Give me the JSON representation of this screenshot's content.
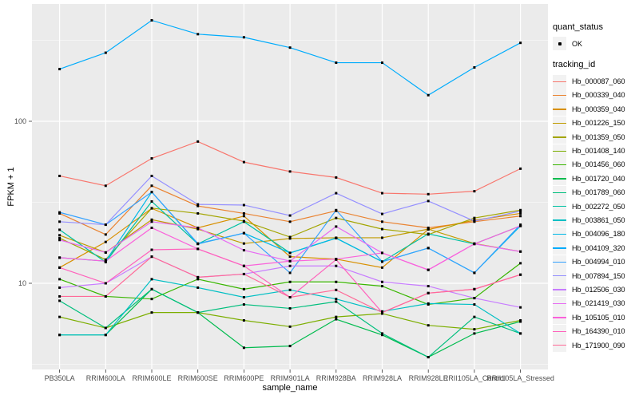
{
  "colors": {
    "panel_background": "#EBEBEB",
    "grid_major": "#FFFFFF",
    "grid_minor": "#F5F5F5",
    "axis_text": "#4D4D4D",
    "axis_title": "#000000",
    "point": "#000000",
    "legend_key_background": "#F2F2F2"
  },
  "axes": {
    "x": {
      "title": "sample_name",
      "tick_labels": [
        "PB350LA",
        "RRIM600LA",
        "RRIM600LE",
        "RRIM600SE",
        "RRIM600PE",
        "RRIM901LA",
        "RRIM928BA",
        "RRIM928LA",
        "RRIM928LE",
        "RRII105LA_Control",
        "RRII105LA_Stressed"
      ]
    },
    "y": {
      "title": "FPKM + 1",
      "tick_labels": [
        "10",
        "100"
      ],
      "tick_values": [
        10,
        100
      ]
    }
  },
  "legend": {
    "quant_status": {
      "title": "quant_status",
      "items": [
        {
          "label": "OK"
        }
      ]
    },
    "tracking_id": {
      "title": "tracking_id"
    }
  },
  "chart_data": {
    "type": "line",
    "title": "",
    "xlabel": "sample_name",
    "ylabel": "FPKM + 1",
    "yscale": "log10",
    "ylim": [
      2.9,
      530
    ],
    "y_major_gridlines": [
      10,
      100
    ],
    "y_minor_gridlines": [
      3.16,
      31.6,
      316
    ],
    "grid": true,
    "legend_position": "right",
    "point_marker": {
      "label": "OK",
      "color": "#000000",
      "shape": "filled-square"
    },
    "categories": [
      "PB350LA",
      "RRIM600LA",
      "RRIM600LE",
      "RRIM600SE",
      "RRIM600PE",
      "RRIM901LA",
      "RRIM928BA",
      "RRIM928LA",
      "RRIM928LE",
      "RRII105LA_Control",
      "RRII105LA_Stressed"
    ],
    "series": [
      {
        "name": "Hb_000087_060",
        "color": "#F8766D",
        "values": [
          46,
          40,
          59,
          75,
          56,
          49,
          45,
          36,
          35.5,
          37,
          51
        ]
      },
      {
        "name": "Hb_000339_040",
        "color": "#EA8331",
        "values": [
          27,
          20,
          40,
          30,
          27,
          24,
          28,
          24,
          22,
          24,
          26
        ]
      },
      {
        "name": "Hb_000359_040",
        "color": "#D89000",
        "values": [
          12.5,
          18,
          29,
          22,
          26,
          14.6,
          14.1,
          12.5,
          21.5,
          24.5,
          27
        ]
      },
      {
        "name": "Hb_001226_150",
        "color": "#C09B00",
        "values": [
          19.8,
          15.5,
          24.7,
          21.6,
          17.6,
          18.9,
          19.1,
          19.1,
          21.6,
          17.6,
          15.7
        ]
      },
      {
        "name": "Hb_001359_050",
        "color": "#A3A500",
        "values": [
          19,
          14,
          29.1,
          27,
          24.2,
          19.3,
          25.3,
          21.6,
          20,
          25.3,
          28.3
        ]
      },
      {
        "name": "Hb_001408_140",
        "color": "#7CAE00",
        "values": [
          6.2,
          5.3,
          6.6,
          6.6,
          5.9,
          5.4,
          6.2,
          6.5,
          5.5,
          5.2,
          5.9
        ]
      },
      {
        "name": "Hb_001456_060",
        "color": "#39B600",
        "values": [
          10.6,
          8.3,
          8,
          10.6,
          9.2,
          10.2,
          10.2,
          9.6,
          7.4,
          8.1,
          13.3
        ]
      },
      {
        "name": "Hb_001720_040",
        "color": "#00BB4E",
        "values": [
          4.8,
          4.8,
          9.2,
          6.6,
          4.0,
          4.1,
          6.0,
          4.8,
          3.5,
          4.9,
          5.8
        ]
      },
      {
        "name": "Hb_001789_060",
        "color": "#00BF7D",
        "values": [
          7.8,
          5.3,
          9.2,
          6.6,
          7.4,
          7.0,
          7.7,
          4.9,
          3.5,
          6.2,
          4.9
        ]
      },
      {
        "name": "Hb_002272_050",
        "color": "#00C1A3",
        "values": [
          21.4,
          13.5,
          32,
          17.5,
          24,
          15.4,
          19,
          13.6,
          20.2,
          17.5,
          22.6
        ]
      },
      {
        "name": "Hb_003861_050",
        "color": "#00BFC4",
        "values": [
          4.8,
          4.8,
          10.6,
          9.4,
          8.2,
          9.1,
          8,
          6.7,
          7.5,
          7.4,
          4.9
        ]
      },
      {
        "name": "Hb_004096_180",
        "color": "#00B8E7",
        "values": [
          14.4,
          13.7,
          36.6,
          17.5,
          20.4,
          15.4,
          19,
          13.6,
          16.5,
          11.6,
          22.6
        ]
      },
      {
        "name": "Hb_004109_320",
        "color": "#00ACFC",
        "values": [
          210,
          265,
          420,
          345,
          330,
          285,
          230,
          230,
          145,
          215,
          305
        ]
      },
      {
        "name": "Hb_004994_010",
        "color": "#35A2FF",
        "values": [
          27.4,
          23,
          36.6,
          17.6,
          20.4,
          11.6,
          28.3,
          13.6,
          16.5,
          11.6,
          23
        ]
      },
      {
        "name": "Hb_007894_150",
        "color": "#9590FF",
        "values": [
          24,
          23,
          46,
          30.7,
          30.4,
          26.2,
          36,
          26.8,
          32.2,
          24.2,
          27.9
        ]
      },
      {
        "name": "Hb_012506_030",
        "color": "#C77CFF",
        "values": [
          9.4,
          10,
          14.6,
          10.9,
          11.4,
          12.8,
          12.8,
          10.2,
          9.6,
          8.1,
          7.1
        ]
      },
      {
        "name": "Hb_021419_030",
        "color": "#E76BF3",
        "values": [
          18.5,
          15.5,
          24,
          22,
          16,
          13.7,
          22.4,
          15.4,
          12.1,
          17.5,
          15.7
        ]
      },
      {
        "name": "Hb_105105_010",
        "color": "#FA62DB",
        "values": [
          14.4,
          13.7,
          22,
          16.3,
          12.8,
          13.7,
          14.1,
          15.4,
          12.1,
          17.5,
          22.6
        ]
      },
      {
        "name": "Hb_164390_010",
        "color": "#FF62BC",
        "values": [
          12.5,
          10,
          16.1,
          16.3,
          12.8,
          8.2,
          14,
          6.6,
          8.7,
          9.2,
          11.3
        ]
      },
      {
        "name": "Hb_171900_090",
        "color": "#FF6A98",
        "values": [
          8.3,
          8.3,
          14.6,
          10.9,
          11.4,
          8.2,
          9.1,
          6.6,
          8.7,
          9.2,
          11.3
        ]
      }
    ]
  }
}
